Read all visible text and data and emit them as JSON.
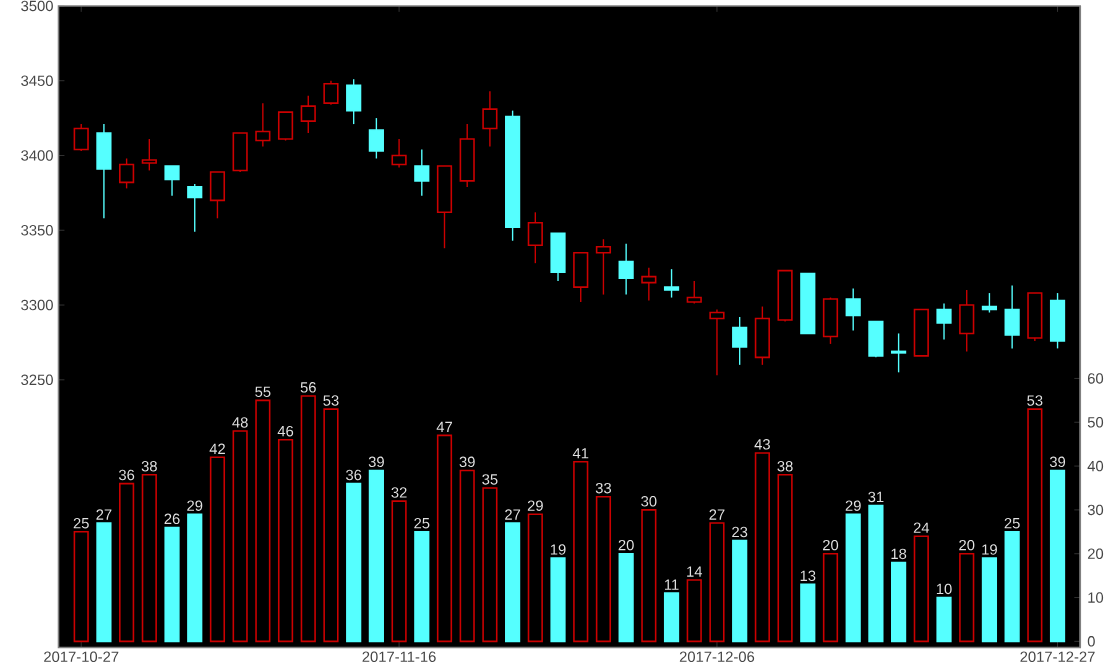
{
  "chart_data": {
    "type": "candlestick",
    "categories": [
      "2017-10-27",
      null,
      null,
      null,
      null,
      null,
      null,
      null,
      null,
      null,
      null,
      null,
      null,
      null,
      "2017-11-16",
      null,
      null,
      null,
      null,
      null,
      null,
      null,
      null,
      null,
      null,
      null,
      null,
      null,
      "2017-12-06",
      null,
      null,
      null,
      null,
      null,
      null,
      null,
      null,
      null,
      null,
      null,
      null,
      null,
      null,
      "2017-12-27"
    ],
    "ylim": [
      3071,
      3500
    ],
    "yticks": [
      3250,
      3300,
      3350,
      3400,
      3450,
      3500
    ],
    "y2lim": [
      -1.4,
      145
    ],
    "y2ticks": [
      0,
      10,
      20,
      30,
      40,
      50,
      60
    ],
    "data_labels": true,
    "series": [
      {
        "ohlc": [
          [
            3404,
            3421,
            3403,
            3418
          ],
          [
            3415,
            3421,
            3358,
            3391
          ],
          [
            3382,
            3398,
            3378,
            3394
          ],
          [
            3395,
            3411,
            3390,
            3397
          ],
          [
            3393,
            3393,
            3373,
            3384
          ],
          [
            3379,
            3381,
            3349,
            3372
          ],
          [
            3370,
            3389,
            3358,
            3389
          ],
          [
            3390,
            3415,
            3389,
            3415
          ],
          [
            3410,
            3435,
            3406,
            3416
          ],
          [
            3411,
            3429,
            3410,
            3429
          ],
          [
            3423,
            3440,
            3415,
            3433
          ],
          [
            3435,
            3450,
            3434,
            3448
          ],
          [
            3447,
            3451,
            3421,
            3430
          ],
          [
            3417,
            3425,
            3398,
            3403
          ],
          [
            3394,
            3411,
            3392,
            3400
          ],
          [
            3393,
            3404,
            3373,
            3383
          ],
          [
            3362,
            3393,
            3338,
            3393
          ],
          [
            3383,
            3421,
            3379,
            3411
          ],
          [
            3418,
            3443,
            3406,
            3431
          ],
          [
            3426,
            3430,
            3343,
            3352
          ],
          [
            3340,
            3362,
            3328,
            3355
          ],
          [
            3348,
            3348,
            3316,
            3322
          ],
          [
            3312,
            3335,
            3302,
            3335
          ],
          [
            3335,
            3344,
            3307,
            3339
          ],
          [
            3329,
            3341,
            3307,
            3318
          ],
          [
            3315,
            3325,
            3303,
            3319
          ],
          [
            3312,
            3324,
            3305,
            3310
          ],
          [
            3302,
            3316,
            3301,
            3305
          ],
          [
            3291,
            3297,
            3253,
            3295
          ],
          [
            3285,
            3292,
            3260,
            3272
          ],
          [
            3265,
            3299,
            3260,
            3291
          ],
          [
            3290,
            3323,
            3289,
            3323
          ],
          [
            3321,
            3321,
            3281,
            3281
          ],
          [
            3279,
            3305,
            3274,
            3304
          ],
          [
            3304,
            3311,
            3283,
            3293
          ],
          [
            3289,
            3289,
            3265,
            3266
          ],
          [
            3269,
            3281,
            3255,
            3268
          ],
          [
            3266,
            3297,
            3266,
            3297
          ],
          [
            3297,
            3301,
            3277,
            3288
          ],
          [
            3281,
            3310,
            3269,
            3300
          ],
          [
            3299,
            3308,
            3295,
            3297
          ],
          [
            3297,
            3313,
            3271,
            3280
          ],
          [
            3278,
            3308,
            3276,
            3308
          ],
          [
            3303,
            3308,
            3271,
            3276
          ]
        ],
        "colors": [
          "#cc0000",
          "#55ffff",
          "#cc0000",
          "#cc0000",
          "#55ffff",
          "#55ffff",
          "#cc0000",
          "#cc0000",
          "#cc0000",
          "#cc0000",
          "#cc0000",
          "#cc0000",
          "#55ffff",
          "#55ffff",
          "#cc0000",
          "#55ffff",
          "#cc0000",
          "#cc0000",
          "#cc0000",
          "#55ffff",
          "#cc0000",
          "#55ffff",
          "#cc0000",
          "#cc0000",
          "#55ffff",
          "#cc0000",
          "#55ffff",
          "#cc0000",
          "#cc0000",
          "#55ffff",
          "#cc0000",
          "#cc0000",
          "#55ffff",
          "#cc0000",
          "#55ffff",
          "#55ffff",
          "#55ffff",
          "#cc0000",
          "#55ffff",
          "#cc0000",
          "#55ffff",
          "#55ffff",
          "#cc0000",
          "#55ffff"
        ]
      },
      {
        "type": "bar",
        "axis": "y2",
        "values": [
          25,
          27,
          36,
          38,
          26,
          29,
          42,
          48,
          55,
          46,
          56,
          53,
          36,
          39,
          32,
          25,
          47,
          39,
          35,
          27,
          29,
          19,
          41,
          33,
          20,
          30,
          11,
          14,
          27,
          23,
          43,
          38,
          13,
          20,
          29,
          31,
          18,
          24,
          10,
          20,
          19,
          25,
          53,
          39
        ],
        "colors": [
          "#cc0000",
          "#55ffff",
          "#cc0000",
          "#cc0000",
          "#55ffff",
          "#55ffff",
          "#cc0000",
          "#cc0000",
          "#cc0000",
          "#cc0000",
          "#cc0000",
          "#cc0000",
          "#55ffff",
          "#55ffff",
          "#cc0000",
          "#55ffff",
          "#cc0000",
          "#cc0000",
          "#cc0000",
          "#55ffff",
          "#cc0000",
          "#55ffff",
          "#cc0000",
          "#cc0000",
          "#55ffff",
          "#cc0000",
          "#55ffff",
          "#cc0000",
          "#cc0000",
          "#55ffff",
          "#cc0000",
          "#cc0000",
          "#55ffff",
          "#cc0000",
          "#55ffff",
          "#55ffff",
          "#55ffff",
          "#cc0000",
          "#55ffff",
          "#cc0000",
          "#55ffff",
          "#55ffff",
          "#cc0000",
          "#55ffff"
        ]
      }
    ]
  }
}
